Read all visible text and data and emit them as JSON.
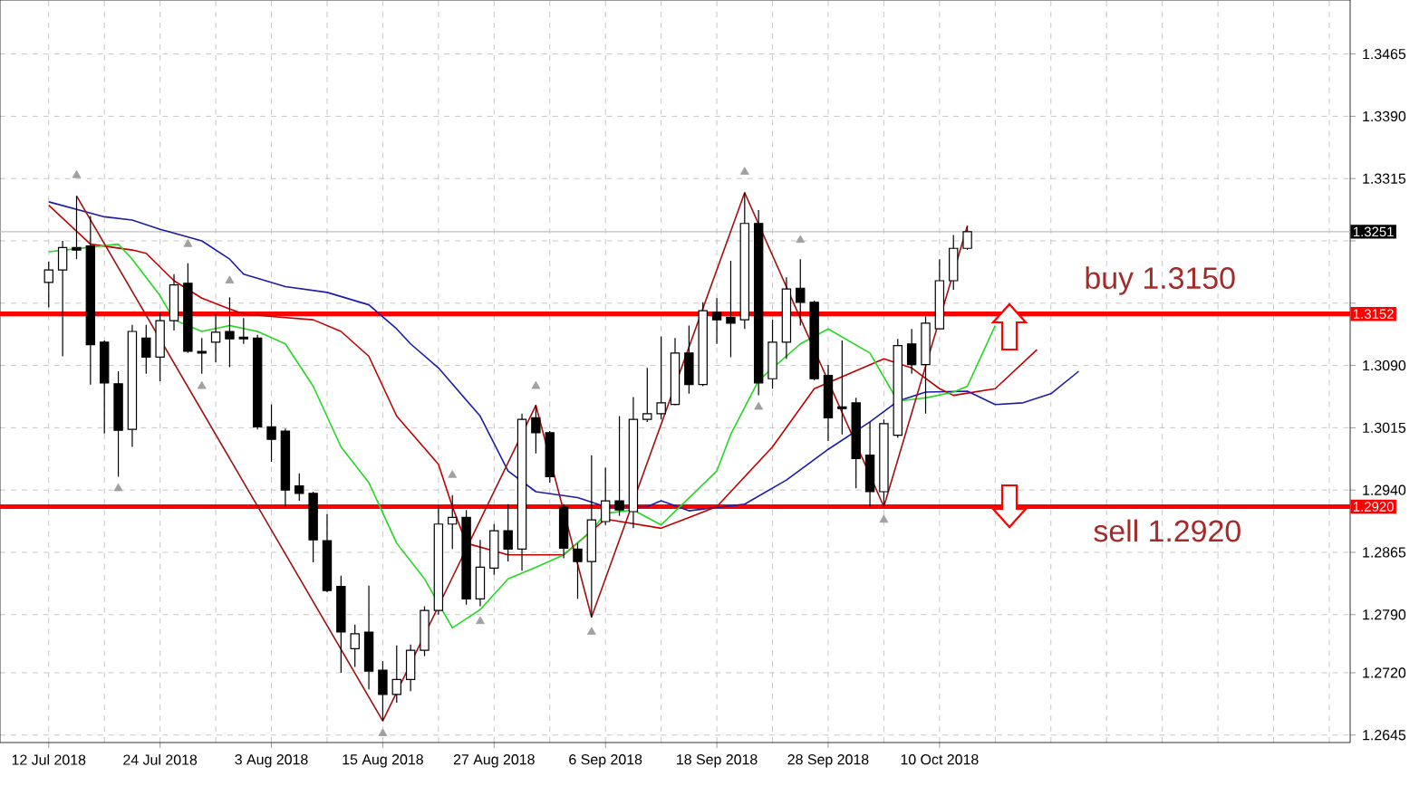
{
  "chart_data": {
    "type": "candlestick",
    "categories": [
      "12 Jul 2018",
      null,
      null,
      null,
      null,
      null,
      null,
      null,
      "24 Jul 2018",
      null,
      null,
      null,
      null,
      null,
      null,
      null,
      "3 Aug 2018",
      null,
      null,
      null,
      null,
      null,
      null,
      null,
      "15 Aug 2018",
      null,
      null,
      null,
      null,
      null,
      null,
      null,
      "27 Aug 2018",
      null,
      null,
      null,
      null,
      null,
      null,
      null,
      "6 Sep 2018",
      null,
      null,
      null,
      null,
      null,
      null,
      null,
      "18 Sep 2018",
      null,
      null,
      null,
      null,
      null,
      null,
      null,
      "28 Sep 2018",
      null,
      null,
      null,
      null,
      null,
      null,
      null,
      "10 Oct 2018",
      null,
      null,
      null,
      null,
      null,
      null,
      null,
      null,
      null,
      null,
      null,
      null,
      null,
      null,
      null,
      null,
      null,
      null,
      null,
      null,
      null,
      null,
      null,
      null,
      null,
      null,
      null,
      null,
      null
    ],
    "ohlc": [
      [
        1.319,
        1.3215,
        1.316,
        1.3205
      ],
      [
        1.3205,
        1.324,
        1.3101,
        1.3232
      ],
      [
        1.3232,
        1.3294,
        1.3218,
        1.3229
      ],
      [
        1.3234,
        1.327,
        1.3067,
        1.3115
      ],
      [
        1.3118,
        1.312,
        1.3008,
        1.3069
      ],
      [
        1.3068,
        1.3083,
        1.2956,
        1.3012
      ],
      [
        1.3013,
        1.3139,
        1.2992,
        1.3131
      ],
      [
        1.3123,
        1.3139,
        1.308,
        1.31
      ],
      [
        1.31,
        1.3154,
        1.3071,
        1.3144
      ],
      [
        1.3144,
        1.32,
        1.3132,
        1.3187
      ],
      [
        1.3189,
        1.3213,
        1.3105,
        1.3107
      ],
      [
        1.3107,
        1.3123,
        1.308,
        1.3105
      ],
      [
        1.3118,
        1.3152,
        1.3094,
        1.313
      ],
      [
        1.3131,
        1.3172,
        1.3088,
        1.3122
      ],
      [
        1.3124,
        1.3147,
        1.3116,
        1.3122
      ],
      [
        1.3123,
        1.3127,
        1.3013,
        1.3016
      ],
      [
        1.3016,
        1.3043,
        1.2974,
        1.3001
      ],
      [
        1.3011,
        1.3014,
        1.292,
        1.294
      ],
      [
        1.2945,
        1.296,
        1.2927,
        1.2936
      ],
      [
        1.2936,
        1.2938,
        1.2853,
        1.288
      ],
      [
        1.2879,
        1.2911,
        1.2817,
        1.2819
      ],
      [
        1.2824,
        1.2837,
        1.272,
        1.2769
      ],
      [
        1.2749,
        1.2778,
        1.2727,
        1.2767
      ],
      [
        1.2769,
        1.2825,
        1.27,
        1.2722
      ],
      [
        1.2723,
        1.2734,
        1.2662,
        1.2694
      ],
      [
        1.2694,
        1.2753,
        1.2684,
        1.2712
      ],
      [
        1.2712,
        1.2754,
        1.2698,
        1.2747
      ],
      [
        1.2747,
        1.28,
        1.274,
        1.2795
      ],
      [
        1.2795,
        1.2921,
        1.279,
        1.2899
      ],
      [
        1.2899,
        1.2934,
        1.2869,
        1.2907
      ],
      [
        1.2907,
        1.2916,
        1.2802,
        1.2809
      ],
      [
        1.2809,
        1.288,
        1.28,
        1.2847
      ],
      [
        1.2846,
        1.2899,
        1.2838,
        1.2891
      ],
      [
        1.2891,
        1.2923,
        1.2854,
        1.2869
      ],
      [
        1.2869,
        1.3032,
        1.2843,
        1.3025
      ],
      [
        1.3027,
        1.3042,
        1.2984,
        1.3009
      ],
      [
        1.3009,
        1.3011,
        1.2949,
        1.2956
      ],
      [
        1.292,
        1.2923,
        1.2858,
        1.287
      ],
      [
        1.2869,
        1.2876,
        1.2809,
        1.2854
      ],
      [
        1.2854,
        1.2982,
        1.2787,
        1.2904
      ],
      [
        1.2902,
        1.2967,
        1.2898,
        1.2927
      ],
      [
        1.2927,
        1.3029,
        1.2909,
        1.2916
      ],
      [
        1.2914,
        1.3052,
        1.2894,
        1.3025
      ],
      [
        1.3025,
        1.3087,
        1.3022,
        1.3032
      ],
      [
        1.3032,
        1.3125,
        1.3025,
        1.3045
      ],
      [
        1.3043,
        1.3123,
        1.3042,
        1.3105
      ],
      [
        1.3105,
        1.3138,
        1.3056,
        1.3067
      ],
      [
        1.3067,
        1.3166,
        1.3065,
        1.3156
      ],
      [
        1.3154,
        1.3171,
        1.3116,
        1.3145
      ],
      [
        1.3148,
        1.3216,
        1.31,
        1.3141
      ],
      [
        1.3145,
        1.3298,
        1.3134,
        1.3261
      ],
      [
        1.3261,
        1.3277,
        1.3054,
        1.3069
      ],
      [
        1.3074,
        1.3145,
        1.3062,
        1.3118
      ],
      [
        1.3118,
        1.3196,
        1.3098,
        1.3182
      ],
      [
        1.3183,
        1.3218,
        1.3138,
        1.3166
      ],
      [
        1.3166,
        1.3168,
        1.3072,
        1.3074
      ],
      [
        1.3078,
        1.3091,
        1.2999,
        1.3027
      ],
      [
        1.304,
        1.312,
        1.3007,
        1.3038
      ],
      [
        1.3045,
        1.3051,
        1.2942,
        1.2978
      ],
      [
        1.2982,
        1.3022,
        1.292,
        1.2938
      ],
      [
        1.2938,
        1.3025,
        1.292,
        1.302
      ],
      [
        1.3006,
        1.3122,
        1.3003,
        1.3114
      ],
      [
        1.3116,
        1.3134,
        1.308,
        1.3091
      ],
      [
        1.3091,
        1.3149,
        1.3032,
        1.3141
      ],
      [
        1.3134,
        1.3218,
        1.3134,
        1.3192
      ],
      [
        1.3192,
        1.3247,
        1.3181,
        1.3231
      ],
      [
        1.3231,
        1.3258,
        1.3229,
        1.3251
      ],
      null,
      null,
      null,
      null,
      null,
      null,
      null,
      null,
      null,
      null,
      null,
      null,
      null,
      null,
      null,
      null,
      null,
      null,
      null,
      null,
      null,
      null,
      null,
      null,
      null,
      null,
      null
    ],
    "series": [
      {
        "type": "line",
        "color": "#1c1ca8",
        "values": [
          1.3287,
          null,
          null,
          null,
          1.3269,
          null,
          1.3265,
          null,
          1.3254,
          null,
          null,
          1.324,
          null,
          1.3218,
          1.32,
          null,
          null,
          1.3185,
          null,
          null,
          1.3178,
          null,
          null,
          1.3163,
          null,
          1.3134,
          1.3116,
          null,
          1.3087,
          null,
          null,
          1.3029,
          null,
          1.2963,
          null,
          1.2938,
          null,
          null,
          1.2931,
          null,
          1.292,
          null,
          null,
          1.292,
          1.2927,
          null,
          1.2915,
          null,
          null,
          null,
          1.2923,
          null,
          null,
          1.2952,
          null,
          null,
          1.2989,
          null,
          null,
          1.3022,
          null,
          1.3047,
          null,
          1.3058,
          null,
          null,
          1.3059,
          null,
          1.3043,
          null,
          1.3045,
          null,
          1.3056,
          null,
          1.3083,
          null,
          null,
          null,
          null,
          null,
          null,
          null,
          null,
          null,
          null,
          null,
          null,
          null,
          null,
          null,
          null,
          null,
          null,
          null
        ]
      },
      {
        "type": "line",
        "color": "#c00000",
        "values": [
          1.3283,
          null,
          null,
          1.3236,
          null,
          null,
          1.3229,
          1.3225,
          null,
          1.3192,
          null,
          1.3171,
          null,
          1.3158,
          1.3152,
          null,
          1.3149,
          null,
          null,
          1.3145,
          null,
          1.3131,
          null,
          1.3101,
          null,
          1.3029,
          null,
          null,
          1.2971,
          1.292,
          1.2876,
          null,
          null,
          1.2862,
          null,
          null,
          null,
          1.2862,
          null,
          null,
          1.2905,
          null,
          null,
          null,
          1.2894,
          null,
          null,
          null,
          1.292,
          null,
          null,
          null,
          1.2992,
          null,
          null,
          1.3062,
          null,
          null,
          null,
          null,
          1.3098,
          null,
          1.3087,
          null,
          1.3062,
          1.3054,
          null,
          null,
          1.3062,
          null,
          null,
          1.3109,
          null,
          null,
          null,
          null,
          null,
          null,
          null,
          null,
          null,
          null,
          null,
          null,
          null,
          null,
          null,
          null,
          null,
          null,
          null,
          null,
          null,
          null
        ]
      },
      {
        "type": "line",
        "color": "#22d822",
        "values": [
          1.3227,
          null,
          null,
          null,
          null,
          1.3236,
          1.3218,
          null,
          1.3174,
          1.3145,
          null,
          1.3131,
          null,
          1.3138,
          null,
          1.3131,
          null,
          1.3116,
          null,
          1.3065,
          null,
          1.2992,
          null,
          1.2949,
          null,
          1.2876,
          null,
          1.2833,
          null,
          1.2774,
          null,
          1.2796,
          null,
          1.2833,
          null,
          1.2847,
          null,
          1.2862,
          null,
          1.2891,
          1.2912,
          null,
          1.2916,
          null,
          1.2898,
          null,
          null,
          null,
          1.2963,
          1.3007,
          null,
          1.3072,
          null,
          null,
          1.3116,
          null,
          1.3134,
          null,
          null,
          1.3105,
          null,
          1.3047,
          null,
          1.3051,
          null,
          1.3058,
          1.3065,
          null,
          1.3138,
          null,
          null,
          null,
          null,
          null,
          null,
          null,
          null,
          null,
          null,
          null,
          null,
          null,
          null,
          null,
          null,
          null,
          null,
          null,
          null,
          null,
          null,
          null,
          null,
          null
        ]
      },
      {
        "type": "line",
        "color": "#a01010",
        "values": [
          null,
          null,
          1.3294,
          null,
          null,
          null,
          null,
          null,
          null,
          null,
          null,
          null,
          null,
          null,
          null,
          null,
          null,
          null,
          null,
          null,
          null,
          null,
          null,
          null,
          1.2662,
          null,
          null,
          null,
          null,
          null,
          null,
          null,
          null,
          null,
          null,
          1.3042,
          null,
          null,
          null,
          1.2787,
          null,
          null,
          null,
          null,
          null,
          null,
          null,
          null,
          null,
          null,
          1.3298,
          null,
          null,
          null,
          null,
          null,
          null,
          null,
          null,
          null,
          1.292,
          null,
          null,
          null,
          null,
          null,
          1.3258,
          null,
          null,
          null,
          null,
          null,
          null,
          null,
          null,
          null,
          null,
          null,
          null,
          null,
          null,
          null,
          null,
          null,
          null,
          null,
          null,
          null,
          null,
          null,
          null,
          null,
          null,
          null
        ]
      },
      {
        "type": "scatter",
        "color": "#a0a0a0",
        "marker": "triangle",
        "values": [
          null,
          null,
          1.3319,
          null,
          null,
          null,
          null,
          null,
          null,
          null,
          1.3236,
          null,
          null,
          1.3192,
          null,
          null,
          null,
          null,
          null,
          null,
          null,
          null,
          null,
          null,
          null,
          null,
          null,
          null,
          null,
          1.2958,
          null,
          null,
          null,
          null,
          null,
          1.3065,
          null,
          null,
          null,
          null,
          null,
          null,
          null,
          null,
          null,
          null,
          null,
          null,
          null,
          null,
          1.3323,
          null,
          null,
          null,
          1.3241,
          null,
          null,
          null,
          null,
          null,
          null,
          null,
          null,
          null,
          null,
          null,
          null,
          null,
          null,
          null,
          null,
          null,
          null,
          null,
          null,
          null,
          null,
          null,
          null,
          null,
          null,
          null,
          null,
          null,
          null,
          null,
          null,
          null,
          null,
          null,
          null,
          null,
          null,
          null
        ]
      },
      {
        "type": "scatter",
        "color": "#a0a0a0",
        "marker": "triangle",
        "values": [
          null,
          null,
          null,
          null,
          null,
          1.2942,
          null,
          null,
          null,
          null,
          null,
          1.3065,
          null,
          null,
          null,
          null,
          null,
          null,
          null,
          null,
          null,
          null,
          null,
          null,
          1.2647,
          null,
          null,
          null,
          null,
          null,
          null,
          1.2782,
          null,
          null,
          null,
          null,
          null,
          null,
          null,
          1.2769,
          null,
          null,
          null,
          null,
          null,
          null,
          null,
          null,
          null,
          null,
          null,
          1.304,
          null,
          null,
          null,
          null,
          null,
          null,
          null,
          null,
          1.2904,
          null,
          null,
          null,
          null,
          null,
          null,
          null,
          null,
          null,
          null,
          null,
          null,
          null,
          null,
          null,
          null,
          null,
          null,
          null,
          null,
          null,
          null,
          null,
          null,
          null,
          null,
          null,
          null,
          null,
          null,
          null,
          null,
          null
        ]
      }
    ],
    "ylim": [
      1.2636,
      1.353
    ],
    "yticks": [
      1.3465,
      {
        "value": 1.339,
        "label": "1.3390"
      },
      1.3315,
      {
        "value": 1.324,
        "label": null
      },
      {
        "value": 1.3165,
        "label": null
      },
      {
        "value": 1.309,
        "label": "1.3090"
      },
      1.3015,
      {
        "value": 1.294,
        "label": "1.2940"
      },
      1.2865,
      {
        "value": 1.279,
        "label": "1.2790"
      },
      {
        "value": 1.272,
        "label": "1.2720"
      },
      1.2645
    ],
    "ref_lines": [
      {
        "axis": "y",
        "value": 1.3251,
        "label": "1.3251",
        "color": "#c0c0c0"
      },
      {
        "axis": "y",
        "value": 1.3152,
        "label": "1.3152",
        "color": "#ff0000"
      },
      {
        "axis": "y",
        "value": 1.292,
        "label": "1.2920",
        "color": "#ff0000"
      }
    ],
    "annotations": [
      "buy 1.3150",
      "sell 1.2920"
    ],
    "grid": true
  }
}
